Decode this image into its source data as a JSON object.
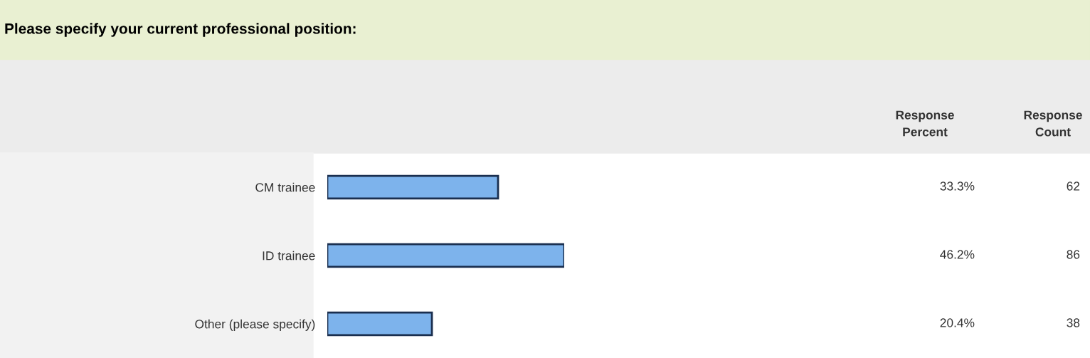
{
  "chart_data": {
    "type": "bar",
    "orientation": "horizontal",
    "title": "Please specify your current professional position:",
    "categories": [
      "CM trainee",
      "ID trainee",
      "Other (please specify)"
    ],
    "values": [
      33.3,
      46.2,
      20.4
    ],
    "color": "#7db3ec",
    "value_labels": [
      "33.3%",
      "46.2%",
      "20.4%"
    ],
    "tick_labels": "y",
    "grid": false,
    "legend": false,
    "annotations": [
      "Response\nPercent",
      "Response\nCount",
      "62",
      "86",
      "38"
    ]
  }
}
